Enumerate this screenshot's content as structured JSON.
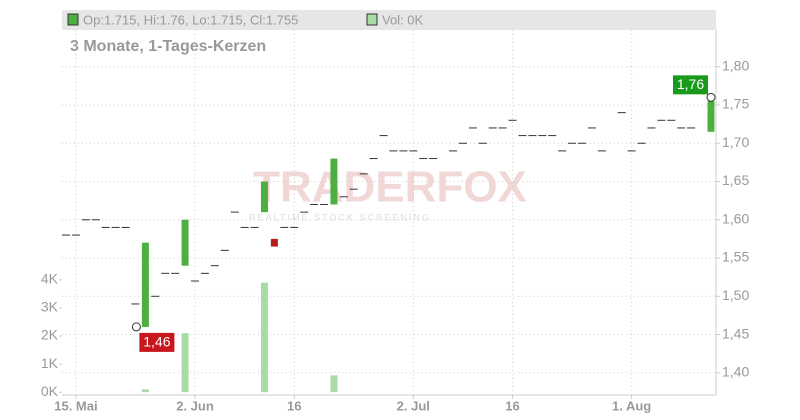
{
  "chart_data": {
    "type": "candlestick",
    "header": {
      "ohlc": "Op:1.715, Hi:1.76, Lo:1.715, Cl:1.755",
      "volume": "Vol: 0K"
    },
    "subtitle": "3 Monate, 1-Tages-Kerzen",
    "watermark": {
      "brand": "TRADERFOX",
      "tagline": "REALTIME STOCK SCREENING"
    },
    "categories": [
      null,
      "15. Mai",
      null,
      null,
      null,
      null,
      null,
      null,
      null,
      null,
      null,
      null,
      null,
      "2. Jun",
      null,
      null,
      null,
      null,
      null,
      null,
      null,
      null,
      null,
      "16",
      null,
      null,
      null,
      null,
      null,
      null,
      null,
      null,
      null,
      null,
      null,
      "2. Jul",
      null,
      null,
      null,
      null,
      null,
      null,
      null,
      null,
      null,
      "16",
      null,
      null,
      null,
      null,
      null,
      null,
      null,
      null,
      null,
      null,
      null,
      "1. Aug",
      null,
      null,
      null,
      null,
      null,
      null,
      null,
      null
    ],
    "open": [
      1.58,
      1.58,
      1.6,
      1.6,
      1.59,
      1.59,
      1.59,
      1.49,
      1.46,
      1.5,
      1.53,
      1.53,
      1.54,
      1.52,
      1.53,
      1.54,
      1.56,
      1.61,
      1.59,
      1.59,
      1.61,
      1.575,
      1.59,
      1.59,
      1.61,
      1.62,
      1.62,
      1.62,
      1.63,
      1.64,
      1.66,
      1.68,
      1.71,
      1.69,
      1.69,
      1.69,
      1.68,
      1.68,
      null,
      1.69,
      1.7,
      1.72,
      1.7,
      1.72,
      1.72,
      1.73,
      1.71,
      1.71,
      1.71,
      1.71,
      1.69,
      1.7,
      1.7,
      1.72,
      1.69,
      null,
      1.74,
      1.69,
      1.7,
      1.72,
      1.73,
      1.73,
      1.72,
      1.72,
      null,
      1.715
    ],
    "high": [
      1.58,
      1.58,
      1.6,
      1.6,
      1.59,
      1.59,
      1.59,
      1.49,
      1.57,
      1.5,
      1.53,
      1.53,
      1.6,
      1.52,
      1.53,
      1.54,
      1.56,
      1.61,
      1.59,
      1.59,
      1.65,
      1.575,
      1.59,
      1.59,
      1.61,
      1.62,
      1.62,
      1.68,
      1.63,
      1.64,
      1.66,
      1.68,
      1.71,
      1.69,
      1.69,
      1.69,
      1.68,
      1.68,
      null,
      1.69,
      1.7,
      1.72,
      1.7,
      1.72,
      1.72,
      1.73,
      1.71,
      1.71,
      1.71,
      1.71,
      1.69,
      1.7,
      1.7,
      1.72,
      1.69,
      null,
      1.74,
      1.69,
      1.7,
      1.72,
      1.73,
      1.73,
      1.72,
      1.72,
      null,
      1.76
    ],
    "low": [
      1.58,
      1.58,
      1.6,
      1.6,
      1.59,
      1.59,
      1.59,
      1.49,
      1.46,
      1.5,
      1.53,
      1.53,
      1.54,
      1.52,
      1.53,
      1.54,
      1.56,
      1.61,
      1.59,
      1.59,
      1.61,
      1.565,
      1.59,
      1.59,
      1.61,
      1.62,
      1.62,
      1.62,
      1.63,
      1.64,
      1.66,
      1.68,
      1.71,
      1.69,
      1.69,
      1.69,
      1.68,
      1.68,
      null,
      1.69,
      1.7,
      1.72,
      1.7,
      1.72,
      1.72,
      1.73,
      1.71,
      1.71,
      1.71,
      1.71,
      1.69,
      1.7,
      1.7,
      1.72,
      1.69,
      null,
      1.74,
      1.69,
      1.7,
      1.72,
      1.73,
      1.73,
      1.72,
      1.72,
      null,
      1.715
    ],
    "close": [
      1.58,
      1.58,
      1.6,
      1.6,
      1.59,
      1.59,
      1.59,
      1.49,
      1.57,
      1.5,
      1.53,
      1.53,
      1.6,
      1.52,
      1.53,
      1.54,
      1.56,
      1.61,
      1.59,
      1.59,
      1.65,
      1.565,
      1.59,
      1.59,
      1.61,
      1.62,
      1.62,
      1.68,
      1.63,
      1.64,
      1.66,
      1.68,
      1.71,
      1.69,
      1.69,
      1.69,
      1.68,
      1.68,
      null,
      1.69,
      1.7,
      1.72,
      1.7,
      1.72,
      1.72,
      1.73,
      1.71,
      1.71,
      1.71,
      1.71,
      1.69,
      1.7,
      1.7,
      1.72,
      1.69,
      null,
      1.74,
      1.69,
      1.7,
      1.72,
      1.73,
      1.73,
      1.72,
      1.72,
      null,
      1.755
    ],
    "volume": [
      0,
      0,
      0,
      0,
      0,
      0,
      0,
      0,
      0.1,
      0,
      0,
      0,
      2.1,
      0,
      0,
      0,
      0,
      0,
      0,
      0,
      3.9,
      0,
      0,
      0,
      0,
      0,
      0,
      0.6,
      0,
      0,
      0,
      0,
      0,
      0,
      0,
      0,
      0,
      0,
      null,
      0,
      0,
      0,
      0,
      0,
      0,
      0,
      0,
      0,
      0,
      0,
      0,
      0,
      0,
      0,
      0,
      null,
      0,
      0,
      0,
      0,
      0,
      0,
      0,
      0,
      null,
      0
    ],
    "up_color": "#4caf3f",
    "down_color": "#b71c1c",
    "volume_color": "#a9dba5",
    "ylim": [
      1.371,
      1.848
    ],
    "yticks": [
      {
        "value": 1.4,
        "label": "1,40"
      },
      {
        "value": 1.45,
        "label": "1,45"
      },
      {
        "value": 1.5,
        "label": "1,50"
      },
      {
        "value": 1.55,
        "label": "1,55"
      },
      {
        "value": 1.6,
        "label": "1,60"
      },
      {
        "value": 1.65,
        "label": "1,65"
      },
      {
        "value": 1.7,
        "label": "1,70"
      },
      {
        "value": 1.75,
        "label": "1,75"
      },
      {
        "value": 1.8,
        "label": "1,80"
      }
    ],
    "y2lim": [
      -0.1,
      12.9
    ],
    "y2ticks": [
      {
        "value": 0,
        "label": "0K"
      },
      {
        "value": 1,
        "label": "1K"
      },
      {
        "value": 2,
        "label": "2K"
      },
      {
        "value": 3,
        "label": "3K"
      },
      {
        "value": 4,
        "label": "4K"
      }
    ],
    "annotations": [
      {
        "text": "1,76",
        "value": 1.76,
        "color": "#1a9a1a"
      },
      {
        "text": "1,46",
        "value": 1.46,
        "color": "#c8161d"
      }
    ],
    "grid": true
  }
}
